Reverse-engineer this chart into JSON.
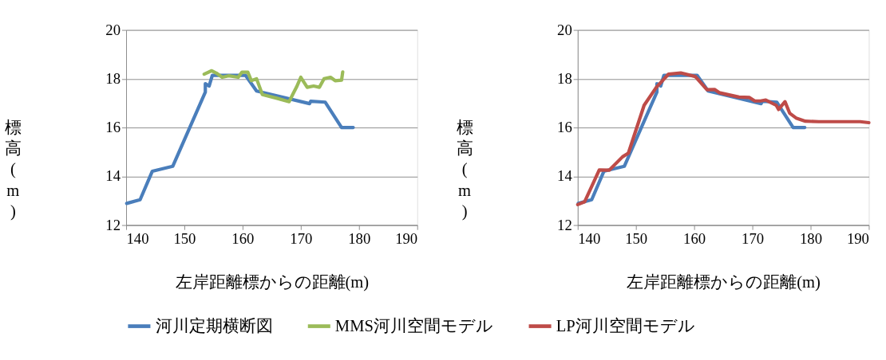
{
  "chart_data": [
    {
      "type": "line",
      "xlabel": "左岸距離標からの距離(m)",
      "ylabel": "標高(m)",
      "xlim": [
        140,
        190
      ],
      "xticks": [
        140,
        150,
        160,
        170,
        180,
        190
      ],
      "ylim": [
        12,
        20
      ],
      "yticks": [
        12,
        14,
        16,
        18,
        20
      ],
      "grid": "y",
      "legend": "bottom",
      "line_style": "solid",
      "marker": "none",
      "series": [
        {
          "name": "河川定期横断図",
          "color": "#4a7ebb",
          "x": [
            140.1,
            142.4,
            144.5,
            148,
            153.6,
            153.6,
            154.25,
            154.8,
            160.5,
            162.4,
            171.5,
            171.7,
            174.2,
            177,
            179
          ],
          "values": [
            12.89,
            13.04,
            14.21,
            14.41,
            17.45,
            17.8,
            17.7,
            18.14,
            18.14,
            17.5,
            16.98,
            17.08,
            17.04,
            16.0,
            16.0
          ]
        },
        {
          "name": "MMS河川空間モデル",
          "color": "#9bbb59",
          "x": [
            153.4,
            154.7,
            155.5,
            156.5,
            157.6,
            159.25,
            159.9,
            160.9,
            161.5,
            162.4,
            163.4,
            165.9,
            168,
            168.6,
            169.25,
            170,
            171.1,
            172.2,
            173.2,
            174,
            175.1,
            175.9,
            177,
            177.2
          ],
          "values": [
            18.19,
            18.33,
            18.23,
            18.06,
            18.12,
            18.06,
            18.27,
            18.27,
            17.92,
            18.0,
            17.35,
            17.2,
            17.06,
            17.35,
            17.65,
            18.06,
            17.65,
            17.7,
            17.65,
            18.0,
            18.06,
            17.92,
            17.94,
            18.28
          ]
        }
      ]
    },
    {
      "type": "line",
      "xlabel": "左岸距離標からの距離(m)",
      "ylabel": "標高(m)",
      "xlim": [
        140,
        190
      ],
      "xticks": [
        140,
        150,
        160,
        170,
        180,
        190
      ],
      "ylim": [
        12,
        20
      ],
      "yticks": [
        12,
        14,
        16,
        18,
        20
      ],
      "grid": "y",
      "legend": "bottom",
      "line_style": "solid",
      "marker": "none",
      "series": [
        {
          "name": "河川定期横断図",
          "color": "#4a7ebb",
          "x": [
            140.1,
            142.4,
            144.5,
            148,
            153.6,
            153.6,
            154.25,
            154.8,
            160.5,
            162.4,
            171.5,
            171.7,
            174.2,
            177,
            179
          ],
          "values": [
            12.89,
            13.04,
            14.21,
            14.41,
            17.45,
            17.8,
            17.7,
            18.14,
            18.14,
            17.5,
            16.98,
            17.08,
            17.04,
            16.0,
            16.0
          ]
        },
        {
          "name": "LP河川空間モデル",
          "color": "#be4b48",
          "x": [
            140,
            141.2,
            143.7,
            145.4,
            147.7,
            148.7,
            151.4,
            153.5,
            155.6,
            157.7,
            160.2,
            162.2,
            163.5,
            164.3,
            167.7,
            169.5,
            170.4,
            171.4,
            172.3,
            174.1,
            174.5,
            175.6,
            176.4,
            177.5,
            179.1,
            181.4,
            188.5,
            190
          ],
          "values": [
            12.84,
            12.96,
            14.26,
            14.25,
            14.8,
            14.95,
            16.91,
            17.65,
            18.19,
            18.24,
            18.09,
            17.55,
            17.56,
            17.43,
            17.25,
            17.23,
            17.09,
            17.09,
            17.13,
            16.91,
            16.74,
            17.06,
            16.59,
            16.39,
            16.26,
            16.24,
            16.24,
            16.2
          ]
        }
      ]
    }
  ]
}
